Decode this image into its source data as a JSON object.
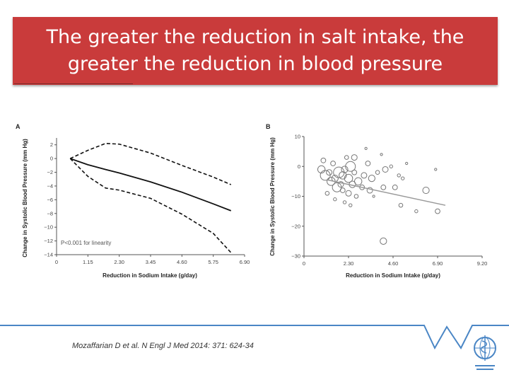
{
  "slide": {
    "title": "The greater the reduction in salt intake, the greater the reduction in blood pressure",
    "citation": "Mozaffarian D et al. N Engl J Med 2014: 371: 624-34"
  },
  "colors": {
    "banner": "#c93b3b",
    "accent_line": "#4a86c5"
  },
  "icons": {
    "logo": "who-logo-icon"
  },
  "chart_data": [
    {
      "type": "line",
      "panel_label": "A",
      "ylabel": "Change in Systolic Blood Pressure (mm Hg)",
      "xlabel": "Reduction in Sodium Intake (g/day)",
      "xlim": [
        0,
        6.9
      ],
      "ylim": [
        -14,
        3
      ],
      "xticks": [
        "0",
        "1.15",
        "2.30",
        "3.45",
        "4.60",
        "5.75",
        "6.90"
      ],
      "xtick_values": [
        0,
        1.15,
        2.3,
        3.45,
        4.6,
        5.75,
        6.9
      ],
      "yticks": [
        "2",
        "0",
        "−2",
        "−4",
        "−6",
        "−8",
        "−10",
        "−12",
        "−14"
      ],
      "ytick_values": [
        2,
        0,
        -2,
        -4,
        -6,
        -8,
        -10,
        -12,
        -14
      ],
      "annotation": "P<0.001 for linearity",
      "series": [
        {
          "name": "estimate",
          "style": "solid",
          "x": [
            0.5,
            1.15,
            1.8,
            2.3,
            3.45,
            4.6,
            5.75,
            6.4
          ],
          "y": [
            0,
            -0.9,
            -1.6,
            -2.1,
            -3.4,
            -4.9,
            -6.6,
            -7.6
          ]
        },
        {
          "name": "upper 95% CI",
          "style": "dashed",
          "x": [
            0.5,
            1.15,
            1.8,
            2.3,
            3.45,
            4.6,
            5.75,
            6.4
          ],
          "y": [
            0,
            1.2,
            2.2,
            2.1,
            0.8,
            -1.0,
            -2.7,
            -3.8
          ]
        },
        {
          "name": "lower 95% CI",
          "style": "dashed",
          "x": [
            0.5,
            1.15,
            1.8,
            2.3,
            3.45,
            4.6,
            5.75,
            6.4
          ],
          "y": [
            0,
            -2.6,
            -4.3,
            -4.6,
            -5.8,
            -8.1,
            -10.9,
            -13.7
          ]
        }
      ]
    },
    {
      "type": "scatter",
      "panel_label": "B",
      "ylabel": "Change in Systolic Blood Pressure (mm Hg)",
      "xlabel": "Reduction in Sodium Intake (g/day)",
      "xlim": [
        0,
        9.2
      ],
      "ylim": [
        -30,
        10
      ],
      "xticks": [
        "0",
        "2.30",
        "4.60",
        "6.90",
        "9.20"
      ],
      "xtick_values": [
        0,
        2.3,
        4.6,
        6.9,
        9.2
      ],
      "yticks": [
        "10",
        "0",
        "−10",
        "−20",
        "−30"
      ],
      "ytick_values": [
        10,
        0,
        -10,
        -20,
        -30
      ],
      "fit_line": {
        "x": [
          1.2,
          7.3
        ],
        "y": [
          -4.5,
          -13
        ]
      },
      "points": [
        {
          "x": 0.9,
          "y": -1,
          "size": 8
        },
        {
          "x": 1.1,
          "y": -3,
          "size": 11
        },
        {
          "x": 1.3,
          "y": -2,
          "size": 6
        },
        {
          "x": 1.4,
          "y": -5,
          "size": 9
        },
        {
          "x": 1.5,
          "y": 1,
          "size": 5
        },
        {
          "x": 1.6,
          "y": -4,
          "size": 7
        },
        {
          "x": 1.7,
          "y": -7,
          "size": 10
        },
        {
          "x": 1.8,
          "y": -2,
          "size": 12
        },
        {
          "x": 1.9,
          "y": -6,
          "size": 6
        },
        {
          "x": 2.0,
          "y": -3,
          "size": 8
        },
        {
          "x": 2.0,
          "y": -8,
          "size": 5
        },
        {
          "x": 2.1,
          "y": -1,
          "size": 7
        },
        {
          "x": 2.2,
          "y": 3,
          "size": 4
        },
        {
          "x": 2.3,
          "y": -4,
          "size": 9
        },
        {
          "x": 2.3,
          "y": -9,
          "size": 6
        },
        {
          "x": 2.4,
          "y": 0,
          "size": 11
        },
        {
          "x": 2.5,
          "y": -6,
          "size": 7
        },
        {
          "x": 2.6,
          "y": -2,
          "size": 5
        },
        {
          "x": 2.6,
          "y": 3,
          "size": 6
        },
        {
          "x": 2.8,
          "y": -5,
          "size": 8
        },
        {
          "x": 1.2,
          "y": -9,
          "size": 4
        },
        {
          "x": 1.0,
          "y": 2,
          "size": 5
        },
        {
          "x": 1.6,
          "y": -11,
          "size": 3
        },
        {
          "x": 2.1,
          "y": -12,
          "size": 3
        },
        {
          "x": 2.7,
          "y": -10,
          "size": 4
        },
        {
          "x": 3.1,
          "y": -3,
          "size": 6
        },
        {
          "x": 3.3,
          "y": 1,
          "size": 5
        },
        {
          "x": 3.4,
          "y": -8,
          "size": 6
        },
        {
          "x": 3.5,
          "y": -4,
          "size": 7
        },
        {
          "x": 3.0,
          "y": -7,
          "size": 5
        },
        {
          "x": 3.8,
          "y": -2,
          "size": 4
        },
        {
          "x": 4.2,
          "y": -1,
          "size": 6
        },
        {
          "x": 4.1,
          "y": -7,
          "size": 5
        },
        {
          "x": 4.5,
          "y": 0,
          "size": 3
        },
        {
          "x": 4.7,
          "y": -7,
          "size": 5
        },
        {
          "x": 4.9,
          "y": -3,
          "size": 3
        },
        {
          "x": 5.1,
          "y": -4,
          "size": 3
        },
        {
          "x": 5.0,
          "y": -13,
          "size": 4
        },
        {
          "x": 5.8,
          "y": -15,
          "size": 3
        },
        {
          "x": 6.3,
          "y": -8,
          "size": 7
        },
        {
          "x": 6.9,
          "y": -15,
          "size": 5
        },
        {
          "x": 3.2,
          "y": 6,
          "size": 2
        },
        {
          "x": 4.0,
          "y": 4,
          "size": 2
        },
        {
          "x": 5.3,
          "y": 1,
          "size": 2
        },
        {
          "x": 6.8,
          "y": -1,
          "size": 2
        },
        {
          "x": 4.1,
          "y": -25,
          "size": 7
        },
        {
          "x": 2.4,
          "y": -13,
          "size": 3
        },
        {
          "x": 3.6,
          "y": -10,
          "size": 2
        }
      ]
    }
  ]
}
